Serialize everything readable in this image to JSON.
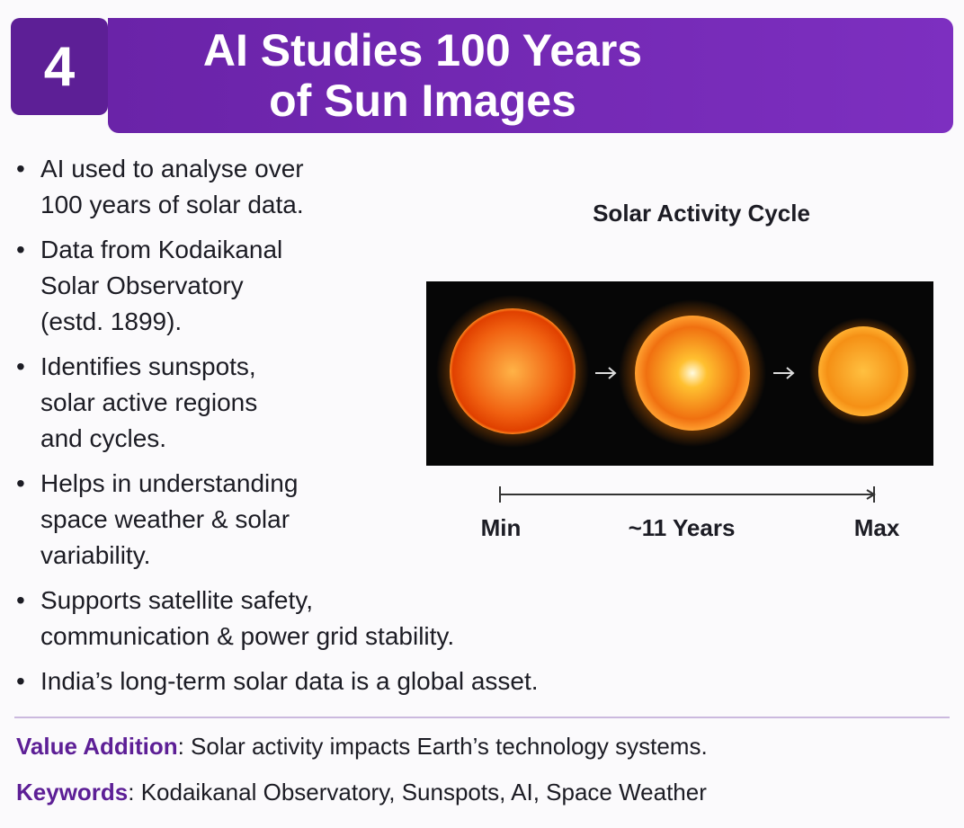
{
  "header": {
    "number": "4",
    "title_lines": [
      "AI Studies 100 Years",
      "of Sun Images"
    ]
  },
  "bullets": [
    [
      "AI used to analyse over",
      "100 years of solar data."
    ],
    [
      "Data from Kodaikanal",
      "Solar Observatory",
      "(estd. 1899)."
    ],
    [
      "Identifies sunspots,",
      "solar active regions",
      "and cycles."
    ],
    [
      "Helps in understanding",
      "space weather & solar",
      "variability."
    ],
    [
      "Supports satellite safety,",
      "communication & power grid stability."
    ],
    [
      "India’s long-term solar data is a global asset."
    ]
  ],
  "figure": {
    "title": "Solar Activity Cycle",
    "timeline": {
      "start": "Min",
      "middle": "~11 Years",
      "end": "Max"
    }
  },
  "footer": {
    "value_addition": {
      "label": "Value Addition",
      "text": ": Solar activity impacts Earth’s technology systems."
    },
    "keywords": {
      "label": "Keywords",
      "text": ": Kodaikanal Observatory, Sunspots, AI, Space Weather"
    }
  }
}
